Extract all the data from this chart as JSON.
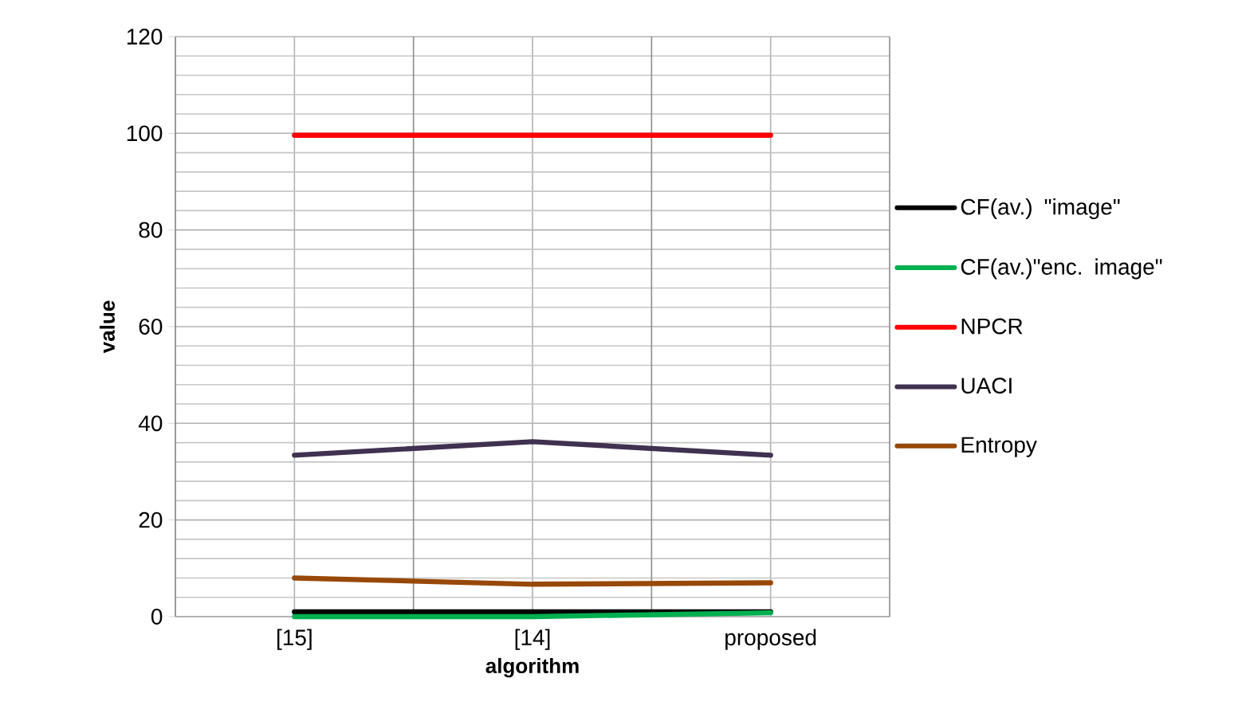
{
  "chart_data": {
    "type": "line",
    "xlabel": "algorithm",
    "ylabel": "value",
    "categories": [
      "[15]",
      "[14]",
      "proposed"
    ],
    "series": [
      {
        "name": "CF(av.) \"image\"",
        "color": "#000000",
        "values": [
          1,
          1,
          1
        ]
      },
      {
        "name": "CF(av.)\"enc. image\"",
        "color": "#00b050",
        "values": [
          0,
          0,
          0.8
        ]
      },
      {
        "name": "NPCR",
        "color": "#ff0000",
        "values": [
          99.6,
          99.6,
          99.6
        ]
      },
      {
        "name": "UACI",
        "color": "#403151",
        "values": [
          33.4,
          36.2,
          33.4
        ]
      },
      {
        "name": "Entropy",
        "color": "#984807",
        "values": [
          8.0,
          6.7,
          7.0
        ]
      }
    ],
    "ylim": [
      0,
      120
    ],
    "yticks": [
      0,
      20,
      40,
      60,
      80,
      100,
      120
    ],
    "grid": true,
    "legend": "right",
    "marker": "none",
    "line_style": "solid"
  }
}
